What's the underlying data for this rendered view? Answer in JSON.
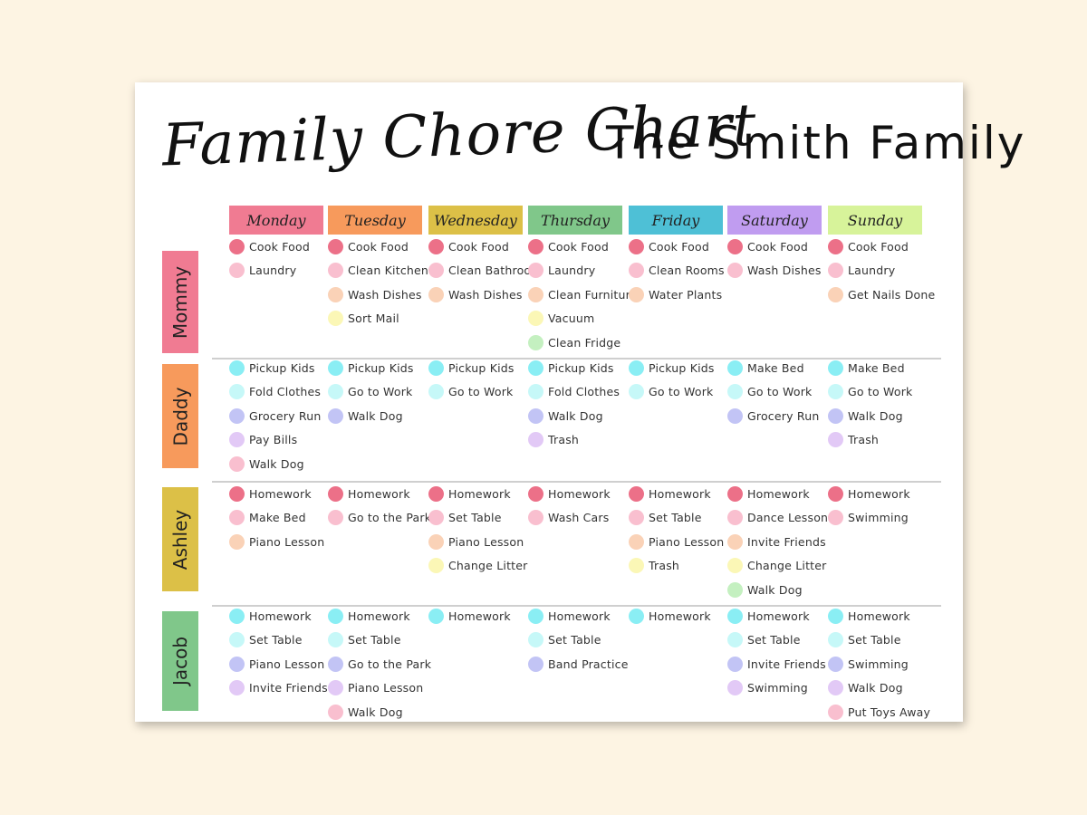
{
  "chart": {
    "title": "Family Chore Chart",
    "family_name": "The Smith Family"
  },
  "days": [
    {
      "label": "Monday",
      "color": "#f07b92"
    },
    {
      "label": "Tuesday",
      "color": "#f79a5c"
    },
    {
      "label": "Wednesday",
      "color": "#dcc047"
    },
    {
      "label": "Thursday",
      "color": "#80c78a"
    },
    {
      "label": "Friday",
      "color": "#4ec0d6"
    },
    {
      "label": "Saturday",
      "color": "#c09cf0"
    },
    {
      "label": "Sunday",
      "color": "#d7f39a"
    }
  ],
  "people": [
    {
      "name": "Mommy",
      "color": "#f07b92"
    },
    {
      "name": "Daddy",
      "color": "#f79a5c"
    },
    {
      "name": "Ashley",
      "color": "#dcc047"
    },
    {
      "name": "Jacob",
      "color": "#80c78a"
    }
  ],
  "dot_colors": {
    "red": "#ec7088",
    "pink": "#f9bfcf",
    "peach": "#fad2b7",
    "yellow": "#fbf7b6",
    "green": "#c4f0c0",
    "cyan": "#8aeef4",
    "lightcyan": "#c6f8f8",
    "periwinkle": "#c2c4f5",
    "lavender": "#e2c9f6"
  },
  "chores": [
    [
      [
        {
          "label": "Cook Food",
          "dot": "red"
        },
        {
          "label": "Laundry",
          "dot": "pink"
        }
      ],
      [
        {
          "label": "Cook Food",
          "dot": "red"
        },
        {
          "label": "Clean Kitchen",
          "dot": "pink"
        },
        {
          "label": "Wash Dishes",
          "dot": "peach"
        },
        {
          "label": "Sort Mail",
          "dot": "yellow"
        }
      ],
      [
        {
          "label": "Cook Food",
          "dot": "red"
        },
        {
          "label": "Clean Bathroom",
          "dot": "pink"
        },
        {
          "label": "Wash Dishes",
          "dot": "peach"
        }
      ],
      [
        {
          "label": "Cook Food",
          "dot": "red"
        },
        {
          "label": "Laundry",
          "dot": "pink"
        },
        {
          "label": "Clean Furniture",
          "dot": "peach"
        },
        {
          "label": "Vacuum",
          "dot": "yellow"
        },
        {
          "label": "Clean Fridge",
          "dot": "green"
        }
      ],
      [
        {
          "label": "Cook Food",
          "dot": "red"
        },
        {
          "label": "Clean Rooms",
          "dot": "pink"
        },
        {
          "label": "Water Plants",
          "dot": "peach"
        }
      ],
      [
        {
          "label": "Cook Food",
          "dot": "red"
        },
        {
          "label": "Wash Dishes",
          "dot": "pink"
        }
      ],
      [
        {
          "label": "Cook Food",
          "dot": "red"
        },
        {
          "label": "Laundry",
          "dot": "pink"
        },
        {
          "label": "Get Nails Done",
          "dot": "peach"
        }
      ]
    ],
    [
      [
        {
          "label": "Pickup Kids",
          "dot": "cyan"
        },
        {
          "label": "Fold Clothes",
          "dot": "lightcyan"
        },
        {
          "label": "Grocery Run",
          "dot": "periwinkle"
        },
        {
          "label": "Pay Bills",
          "dot": "lavender"
        },
        {
          "label": "Walk Dog",
          "dot": "pink"
        }
      ],
      [
        {
          "label": "Pickup Kids",
          "dot": "cyan"
        },
        {
          "label": "Go to Work",
          "dot": "lightcyan"
        },
        {
          "label": "Walk Dog",
          "dot": "periwinkle"
        }
      ],
      [
        {
          "label": "Pickup Kids",
          "dot": "cyan"
        },
        {
          "label": "Go to Work",
          "dot": "lightcyan"
        }
      ],
      [
        {
          "label": "Pickup Kids",
          "dot": "cyan"
        },
        {
          "label": "Fold Clothes",
          "dot": "lightcyan"
        },
        {
          "label": "Walk Dog",
          "dot": "periwinkle"
        },
        {
          "label": "Trash",
          "dot": "lavender"
        }
      ],
      [
        {
          "label": "Pickup Kids",
          "dot": "cyan"
        },
        {
          "label": "Go to Work",
          "dot": "lightcyan"
        }
      ],
      [
        {
          "label": "Make Bed",
          "dot": "cyan"
        },
        {
          "label": "Go to Work",
          "dot": "lightcyan"
        },
        {
          "label": "Grocery Run",
          "dot": "periwinkle"
        }
      ],
      [
        {
          "label": "Make Bed",
          "dot": "cyan"
        },
        {
          "label": "Go to Work",
          "dot": "lightcyan"
        },
        {
          "label": "Walk Dog",
          "dot": "periwinkle"
        },
        {
          "label": "Trash",
          "dot": "lavender"
        }
      ]
    ],
    [
      [
        {
          "label": "Homework",
          "dot": "red"
        },
        {
          "label": "Make Bed",
          "dot": "pink"
        },
        {
          "label": "Piano Lesson",
          "dot": "peach"
        }
      ],
      [
        {
          "label": "Homework",
          "dot": "red"
        },
        {
          "label": "Go to the Park",
          "dot": "pink"
        }
      ],
      [
        {
          "label": "Homework",
          "dot": "red"
        },
        {
          "label": "Set Table",
          "dot": "pink"
        },
        {
          "label": "Piano Lesson",
          "dot": "peach"
        },
        {
          "label": "Change Litter",
          "dot": "yellow"
        }
      ],
      [
        {
          "label": "Homework",
          "dot": "red"
        },
        {
          "label": "Wash Cars",
          "dot": "pink"
        }
      ],
      [
        {
          "label": "Homework",
          "dot": "red"
        },
        {
          "label": "Set Table",
          "dot": "pink"
        },
        {
          "label": "Piano Lesson",
          "dot": "peach"
        },
        {
          "label": "Trash",
          "dot": "yellow"
        }
      ],
      [
        {
          "label": "Homework",
          "dot": "red"
        },
        {
          "label": "Dance Lesson",
          "dot": "pink"
        },
        {
          "label": "Invite Friends",
          "dot": "peach"
        },
        {
          "label": "Change Litter",
          "dot": "yellow"
        },
        {
          "label": "Walk Dog",
          "dot": "green"
        }
      ],
      [
        {
          "label": "Homework",
          "dot": "red"
        },
        {
          "label": "Swimming",
          "dot": "pink"
        }
      ]
    ],
    [
      [
        {
          "label": "Homework",
          "dot": "cyan"
        },
        {
          "label": "Set Table",
          "dot": "lightcyan"
        },
        {
          "label": "Piano Lesson",
          "dot": "periwinkle"
        },
        {
          "label": "Invite Friends",
          "dot": "lavender"
        }
      ],
      [
        {
          "label": "Homework",
          "dot": "cyan"
        },
        {
          "label": "Set Table",
          "dot": "lightcyan"
        },
        {
          "label": "Go to the Park",
          "dot": "periwinkle"
        },
        {
          "label": "Piano Lesson",
          "dot": "lavender"
        },
        {
          "label": "Walk Dog",
          "dot": "pink"
        }
      ],
      [
        {
          "label": "Homework",
          "dot": "cyan"
        }
      ],
      [
        {
          "label": "Homework",
          "dot": "cyan"
        },
        {
          "label": "Set Table",
          "dot": "lightcyan"
        },
        {
          "label": "Band Practice",
          "dot": "periwinkle"
        }
      ],
      [
        {
          "label": "Homework",
          "dot": "cyan"
        }
      ],
      [
        {
          "label": "Homework",
          "dot": "cyan"
        },
        {
          "label": "Set Table",
          "dot": "lightcyan"
        },
        {
          "label": "Invite Friends",
          "dot": "periwinkle"
        },
        {
          "label": "Swimming",
          "dot": "lavender"
        }
      ],
      [
        {
          "label": "Homework",
          "dot": "cyan"
        },
        {
          "label": "Set Table",
          "dot": "lightcyan"
        },
        {
          "label": "Swimming",
          "dot": "periwinkle"
        },
        {
          "label": "Walk Dog",
          "dot": "lavender"
        },
        {
          "label": "Put Toys Away",
          "dot": "pink"
        }
      ]
    ]
  ]
}
